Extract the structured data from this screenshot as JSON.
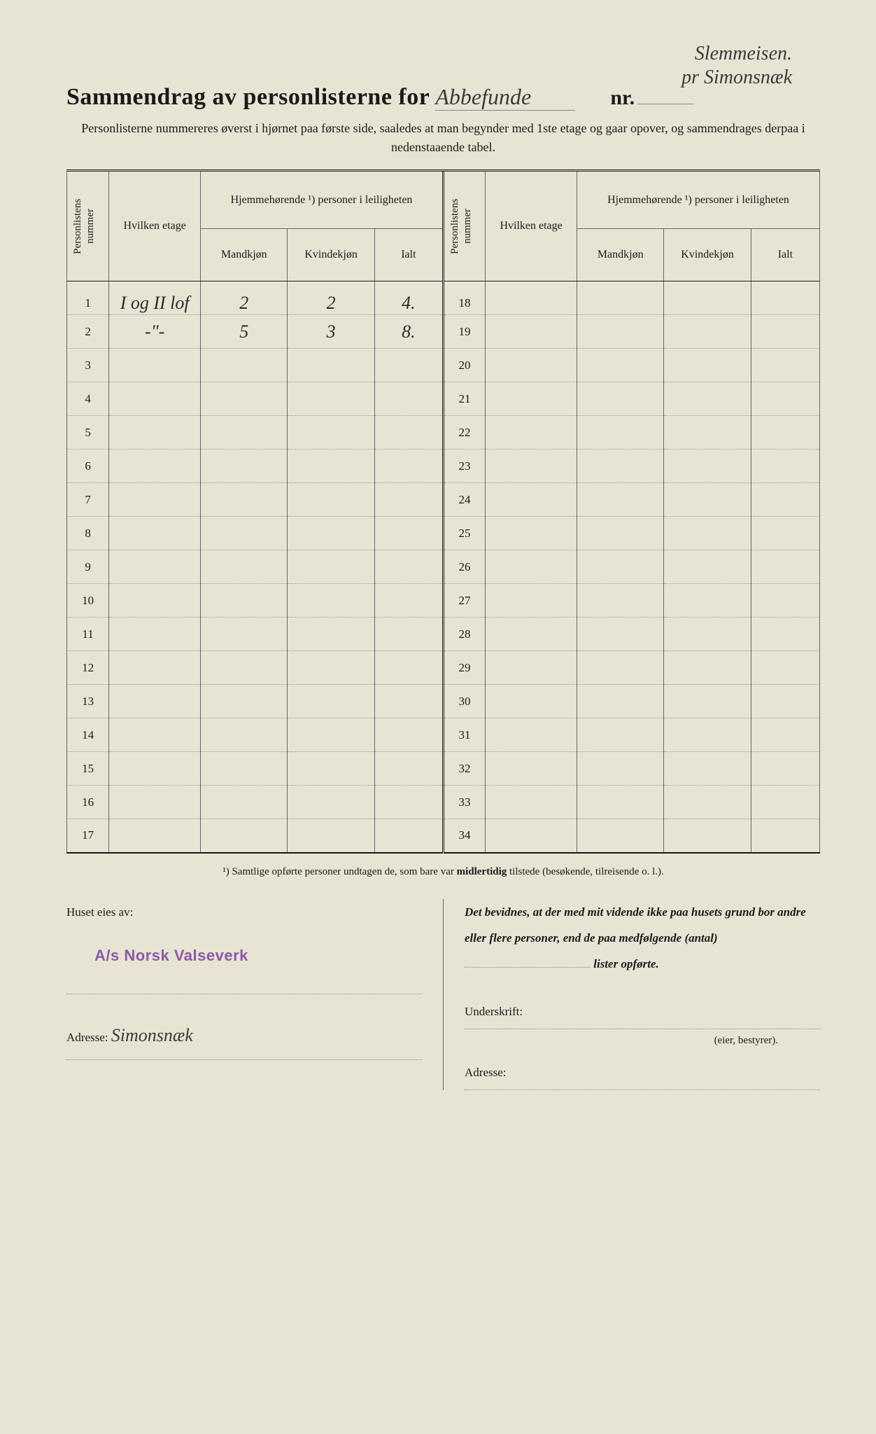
{
  "handwritten_top_line1": "Slemmeisen.",
  "handwritten_top_line2": "pr Simonsnæk",
  "title_main": "Sammendrag av personlisterne for",
  "title_handwritten": "Abbefunde",
  "nr_label": "nr.",
  "subtitle": "Personlisterne nummereres øverst i hjørnet paa første side, saaledes at man begynder med 1ste etage og gaar opover, og sammendrages derpaa i nedenstaaende tabel.",
  "headers": {
    "personlistens_nummer": "Personlistens\nnummer",
    "hvilken_etage": "Hvilken\netage",
    "hjemmehorende": "Hjemmehørende ¹) personer\ni leiligheten",
    "mandkjon": "Mandkjøn",
    "kvindekjon": "Kvindekjøn",
    "ialt": "Ialt"
  },
  "rows_left": [
    {
      "n": "1",
      "etage": "I og II lof",
      "m": "2",
      "k": "2",
      "i": "4."
    },
    {
      "n": "2",
      "etage": "-\"-",
      "m": "5",
      "k": "3",
      "i": "8."
    },
    {
      "n": "3",
      "etage": "",
      "m": "",
      "k": "",
      "i": ""
    },
    {
      "n": "4",
      "etage": "",
      "m": "",
      "k": "",
      "i": ""
    },
    {
      "n": "5",
      "etage": "",
      "m": "",
      "k": "",
      "i": ""
    },
    {
      "n": "6",
      "etage": "",
      "m": "",
      "k": "",
      "i": ""
    },
    {
      "n": "7",
      "etage": "",
      "m": "",
      "k": "",
      "i": ""
    },
    {
      "n": "8",
      "etage": "",
      "m": "",
      "k": "",
      "i": ""
    },
    {
      "n": "9",
      "etage": "",
      "m": "",
      "k": "",
      "i": ""
    },
    {
      "n": "10",
      "etage": "",
      "m": "",
      "k": "",
      "i": ""
    },
    {
      "n": "11",
      "etage": "",
      "m": "",
      "k": "",
      "i": ""
    },
    {
      "n": "12",
      "etage": "",
      "m": "",
      "k": "",
      "i": ""
    },
    {
      "n": "13",
      "etage": "",
      "m": "",
      "k": "",
      "i": ""
    },
    {
      "n": "14",
      "etage": "",
      "m": "",
      "k": "",
      "i": ""
    },
    {
      "n": "15",
      "etage": "",
      "m": "",
      "k": "",
      "i": ""
    },
    {
      "n": "16",
      "etage": "",
      "m": "",
      "k": "",
      "i": ""
    },
    {
      "n": "17",
      "etage": "",
      "m": "",
      "k": "",
      "i": ""
    }
  ],
  "rows_right": [
    {
      "n": "18"
    },
    {
      "n": "19"
    },
    {
      "n": "20"
    },
    {
      "n": "21"
    },
    {
      "n": "22"
    },
    {
      "n": "23"
    },
    {
      "n": "24"
    },
    {
      "n": "25"
    },
    {
      "n": "26"
    },
    {
      "n": "27"
    },
    {
      "n": "28"
    },
    {
      "n": "29"
    },
    {
      "n": "30"
    },
    {
      "n": "31"
    },
    {
      "n": "32"
    },
    {
      "n": "33"
    },
    {
      "n": "34"
    }
  ],
  "footnote": "¹) Samtlige opførte personer undtagen de, som bare var midlertidig tilstede (besøkende, tilreisende o. l.).",
  "footnote_bold": "midlertidig",
  "bottom": {
    "huset_eies": "Huset eies av:",
    "stamp": "A/s Norsk Valseverk",
    "adresse_label": "Adresse:",
    "adresse_hand": "Simonsnæk",
    "attest": "Det bevidnes, at der med mit vidende ikke paa husets grund bor andre eller flere personer, end de paa medfølgende (antal)",
    "attest_end": "lister opførte.",
    "underskrift": "Underskrift:",
    "eier": "(eier, bestyrer).",
    "adresse2": "Adresse:"
  },
  "colors": {
    "paper": "#e8e4d4",
    "text": "#1a1a1a",
    "stamp": "#8a5aa8",
    "handwriting": "#3a3a3a"
  }
}
